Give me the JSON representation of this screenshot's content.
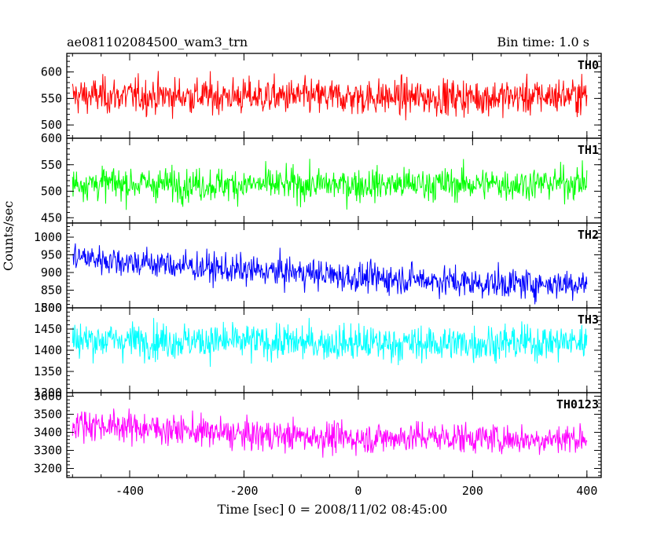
{
  "header": {
    "title": "ae081102084500_wam3_trn",
    "bin_time": "Bin time: 1.0 s"
  },
  "chart_data": {
    "type": "line",
    "title": "ae081102084500_wam3_trn",
    "subtitle": "Bin time: 1.0 s",
    "xlabel": "Time [sec] 0 = 2008/11/02 08:45:00",
    "ylabel": "Counts/sec",
    "xlim": [
      -510,
      425
    ],
    "x_ticks": [
      -400,
      -200,
      0,
      200,
      400
    ],
    "x_range": [
      -500,
      400
    ],
    "bin_time_s": 1.0,
    "series": [
      {
        "name": "TH0",
        "color": "#ff0000",
        "ylim": [
          475,
          635
        ],
        "y_ticks": [
          500,
          550,
          600
        ],
        "trend_x": [
          -500,
          -300,
          -100,
          100,
          300,
          400
        ],
        "trend_y": [
          555,
          555,
          553,
          552,
          553,
          557
        ],
        "noise_sd": 24
      },
      {
        "name": "TH1",
        "color": "#00ff00",
        "ylim": [
          440,
          600
        ],
        "y_ticks": [
          450,
          500,
          550,
          600
        ],
        "trend_x": [
          -500,
          -300,
          -100,
          100,
          300,
          400
        ],
        "trend_y": [
          515,
          513,
          512,
          513,
          514,
          517
        ],
        "noise_sd": 22
      },
      {
        "name": "TH2",
        "color": "#0000ff",
        "ylim": [
          800,
          1040
        ],
        "y_ticks": [
          800,
          850,
          900,
          950,
          1000
        ],
        "trend_x": [
          -500,
          -400,
          -300,
          -200,
          -100,
          0,
          100,
          200,
          300,
          400
        ],
        "trend_y": [
          945,
          930,
          918,
          905,
          900,
          885,
          882,
          870,
          868,
          870
        ],
        "noise_sd": 30
      },
      {
        "name": "TH3",
        "color": "#00ffff",
        "ylim": [
          1300,
          1500
        ],
        "y_ticks": [
          1300,
          1350,
          1400,
          1450,
          1500
        ],
        "trend_x": [
          -500,
          -300,
          -100,
          100,
          300,
          400
        ],
        "trend_y": [
          1425,
          1422,
          1418,
          1415,
          1418,
          1420
        ],
        "noise_sd": 30
      },
      {
        "name": "TH0123",
        "color": "#ff00ff",
        "ylim": [
          3150,
          3620
        ],
        "y_ticks": [
          3200,
          3300,
          3400,
          3500,
          3600
        ],
        "trend_x": [
          -500,
          -400,
          -300,
          -200,
          -100,
          0,
          100,
          200,
          300,
          400
        ],
        "trend_y": [
          3450,
          3430,
          3410,
          3385,
          3380,
          3365,
          3375,
          3370,
          3360,
          3370
        ],
        "noise_sd": 60
      }
    ]
  }
}
